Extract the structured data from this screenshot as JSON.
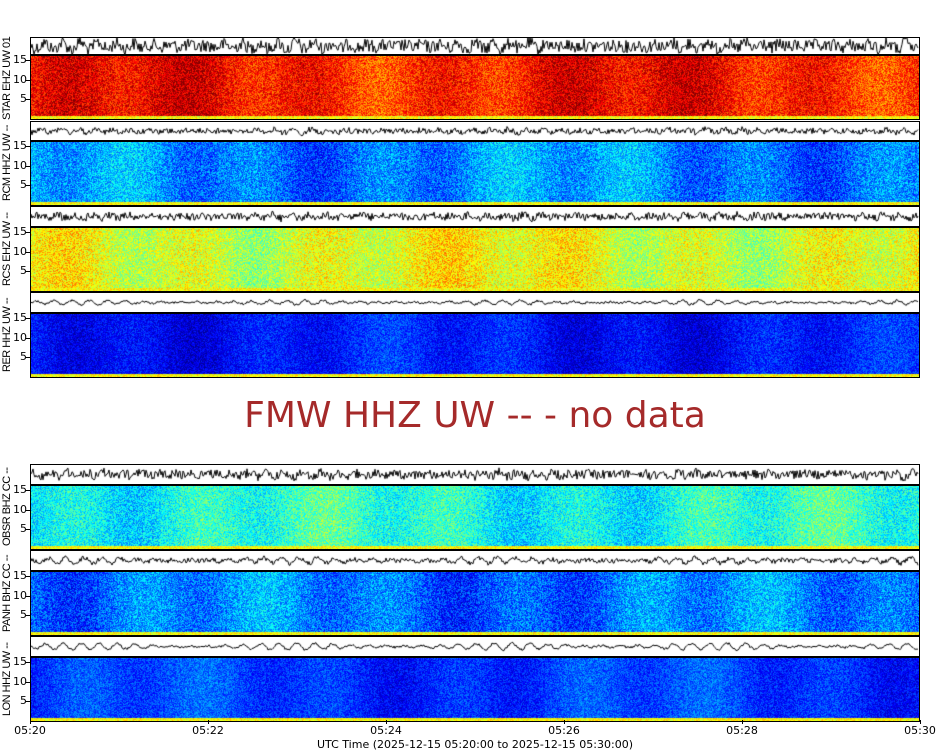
{
  "nodata_message": "FMW HHZ UW -- - no data",
  "chart_data": {
    "type": "heatmap",
    "xlabel": "UTC Time (2025-12-15 05:20:00 to 2025-12-15 05:30:00)",
    "x_ticks": [
      "05:20",
      "05:22",
      "05:24",
      "05:26",
      "05:28",
      "05:30"
    ],
    "y_ticks": [
      "5",
      "10",
      "15"
    ],
    "y_range": [
      0,
      16
    ],
    "colormap": "jet",
    "panels": [
      {
        "label": "STAR EHZ UW 01",
        "intensity": 0.86,
        "spread": 0.07,
        "wave_amp": 0.9,
        "wave_noise": 1.0
      },
      {
        "label": "RCM HHZ UW --",
        "intensity": 0.26,
        "spread": 0.07,
        "wave_amp": 0.4,
        "wave_noise": 0.4
      },
      {
        "label": "RCS EHZ UW --",
        "intensity": 0.6,
        "spread": 0.07,
        "wave_amp": 0.4,
        "wave_noise": 0.5
      },
      {
        "label": "RER HHZ UW --",
        "intensity": 0.14,
        "spread": 0.05,
        "wave_amp": 0.45,
        "wave_noise": 0.15
      },
      {
        "label": "OBSR BHZ CC --",
        "intensity": 0.4,
        "spread": 0.07,
        "wave_amp": 0.5,
        "wave_noise": 0.6
      },
      {
        "label": "PANH BHZ CC --",
        "intensity": 0.24,
        "spread": 0.07,
        "wave_amp": 0.6,
        "wave_noise": 0.3
      },
      {
        "label": "LON HHZ UW --",
        "intensity": 0.18,
        "spread": 0.05,
        "wave_amp": 0.7,
        "wave_noise": 0.15
      }
    ]
  }
}
